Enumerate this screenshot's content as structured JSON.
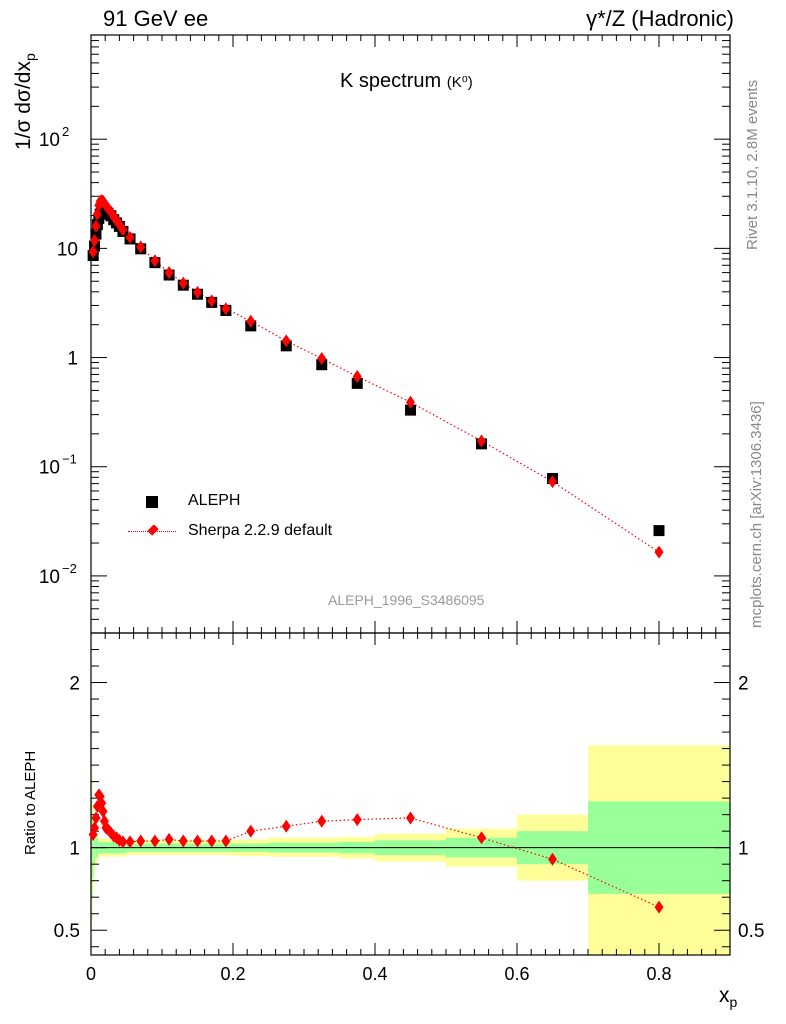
{
  "header": {
    "left": "91 GeV ee",
    "right": "γ*/Z (Hadronic)"
  },
  "side_labels": {
    "rivet": "Rivet 3.1.10,  2.8M events",
    "mcplots": "mcplots.cern.ch [arXiv:1306.3436]"
  },
  "chart_data": [
    {
      "type": "scatter",
      "title": "K spectrum",
      "title_sub": "(K⁰)",
      "watermark": "ALEPH_1996_S3486095",
      "ylabel": "1/σ dσ/dx",
      "ylabel_sub": "p",
      "yscale": "log",
      "xlim": [
        0,
        0.9
      ],
      "ylim": [
        0.003,
        900
      ],
      "ytick_labels": [
        {
          "value": 0.01,
          "base": "10",
          "exp": "−2"
        },
        {
          "value": 0.1,
          "base": "10",
          "exp": "−1"
        },
        {
          "value": 1,
          "base": "1",
          "exp": ""
        },
        {
          "value": 10,
          "base": "10",
          "exp": ""
        },
        {
          "value": 100,
          "base": "10",
          "exp": "2"
        }
      ],
      "legend_position": "bottom-left",
      "legend": [
        {
          "name": "ALEPH",
          "marker": "square",
          "color": "#000000"
        },
        {
          "name": "Sherpa 2.2.9 default",
          "marker": "diamond",
          "color": "#ff0000",
          "line": "dotted"
        }
      ],
      "series": [
        {
          "name": "ALEPH",
          "x": [
            0.003,
            0.005,
            0.007,
            0.009,
            0.011,
            0.013,
            0.015,
            0.017,
            0.019,
            0.021,
            0.024,
            0.028,
            0.032,
            0.036,
            0.04,
            0.045,
            0.055,
            0.07,
            0.09,
            0.11,
            0.13,
            0.15,
            0.17,
            0.19,
            0.225,
            0.275,
            0.325,
            0.375,
            0.45,
            0.55,
            0.65,
            0.8
          ],
          "y": [
            8.6,
            10.5,
            13.5,
            16.5,
            18.8,
            20.6,
            21.6,
            22.2,
            22.2,
            21.9,
            21.0,
            19.9,
            18.3,
            17.1,
            15.9,
            14.3,
            12.2,
            9.9,
            7.4,
            5.7,
            4.6,
            3.8,
            3.2,
            2.7,
            1.95,
            1.28,
            0.86,
            0.58,
            0.33,
            0.162,
            0.078,
            0.026
          ]
        },
        {
          "name": "Sherpa 2.2.9 default",
          "x": [
            0.003,
            0.005,
            0.007,
            0.009,
            0.011,
            0.013,
            0.015,
            0.017,
            0.019,
            0.021,
            0.024,
            0.028,
            0.032,
            0.036,
            0.04,
            0.045,
            0.055,
            0.07,
            0.09,
            0.11,
            0.13,
            0.15,
            0.17,
            0.19,
            0.225,
            0.275,
            0.325,
            0.375,
            0.45,
            0.55,
            0.65,
            0.8
          ],
          "y": [
            9.3,
            11.8,
            16.0,
            20.6,
            24.8,
            27.0,
            27.4,
            27.0,
            25.8,
            24.6,
            23.3,
            21.6,
            19.6,
            18.0,
            16.6,
            14.8,
            12.6,
            10.3,
            7.7,
            6.0,
            4.8,
            3.95,
            3.3,
            2.8,
            2.15,
            1.42,
            0.98,
            0.67,
            0.39,
            0.172,
            0.073,
            0.0165
          ]
        }
      ]
    },
    {
      "type": "line",
      "ylabel": "Ratio to ALEPH",
      "xlabel": "x",
      "xlabel_sub": "p",
      "xlim": [
        0,
        0.9
      ],
      "ylim": [
        0.35,
        2.3
      ],
      "reference_line": 1,
      "xticks": [
        0,
        0.2,
        0.4,
        0.6,
        0.8
      ],
      "xtick_labels": [
        "0",
        "0.2",
        "0.4",
        "0.6",
        "0.8"
      ],
      "yticks": [
        0.5,
        1,
        2
      ],
      "ytick_labels": [
        "0.5",
        "1",
        "2"
      ],
      "bands": [
        {
          "x0": 0.0,
          "x1": 0.002,
          "inner": [
            0.7,
            1.3
          ],
          "outer": [
            0.55,
            1.45
          ]
        },
        {
          "x0": 0.002,
          "x1": 0.004,
          "inner": [
            0.82,
            1.18
          ],
          "outer": [
            0.74,
            1.26
          ]
        },
        {
          "x0": 0.004,
          "x1": 0.006,
          "inner": [
            0.9,
            1.1
          ],
          "outer": [
            0.86,
            1.14
          ]
        },
        {
          "x0": 0.006,
          "x1": 0.01,
          "inner": [
            0.94,
            1.06
          ],
          "outer": [
            0.91,
            1.09
          ]
        },
        {
          "x0": 0.01,
          "x1": 0.05,
          "inner": [
            0.965,
            1.035
          ],
          "outer": [
            0.945,
            1.055
          ]
        },
        {
          "x0": 0.05,
          "x1": 0.2,
          "inner": [
            0.975,
            1.025
          ],
          "outer": [
            0.955,
            1.045
          ]
        },
        {
          "x0": 0.2,
          "x1": 0.25,
          "inner": [
            0.975,
            1.025
          ],
          "outer": [
            0.95,
            1.05
          ]
        },
        {
          "x0": 0.25,
          "x1": 0.35,
          "inner": [
            0.97,
            1.03
          ],
          "outer": [
            0.945,
            1.06
          ]
        },
        {
          "x0": 0.35,
          "x1": 0.4,
          "inner": [
            0.965,
            1.035
          ],
          "outer": [
            0.935,
            1.065
          ]
        },
        {
          "x0": 0.4,
          "x1": 0.5,
          "inner": [
            0.955,
            1.045
          ],
          "outer": [
            0.915,
            1.085
          ]
        },
        {
          "x0": 0.5,
          "x1": 0.6,
          "inner": [
            0.94,
            1.06
          ],
          "outer": [
            0.885,
            1.115
          ]
        },
        {
          "x0": 0.6,
          "x1": 0.7,
          "inner": [
            0.9,
            1.1
          ],
          "outer": [
            0.8,
            1.2
          ]
        },
        {
          "x0": 0.7,
          "x1": 0.9,
          "inner": [
            0.72,
            1.28
          ],
          "outer": [
            0.35,
            1.62
          ]
        }
      ],
      "band_colors": {
        "inner": "#99ff99",
        "outer": "#ffff99"
      },
      "series": [
        {
          "name": "Sherpa 2.2.9 default",
          "color": "#ff0000",
          "x": [
            0.003,
            0.005,
            0.007,
            0.009,
            0.011,
            0.013,
            0.015,
            0.017,
            0.019,
            0.021,
            0.024,
            0.028,
            0.032,
            0.036,
            0.04,
            0.045,
            0.055,
            0.07,
            0.09,
            0.11,
            0.13,
            0.15,
            0.17,
            0.19,
            0.225,
            0.275,
            0.325,
            0.375,
            0.45,
            0.55,
            0.65,
            0.8
          ],
          "y": [
            1.08,
            1.12,
            1.18,
            1.25,
            1.32,
            1.31,
            1.27,
            1.22,
            1.16,
            1.12,
            1.11,
            1.09,
            1.07,
            1.06,
            1.045,
            1.035,
            1.035,
            1.04,
            1.04,
            1.05,
            1.04,
            1.04,
            1.04,
            1.04,
            1.1,
            1.13,
            1.16,
            1.17,
            1.18,
            1.06,
            0.93,
            0.64
          ]
        }
      ]
    }
  ]
}
